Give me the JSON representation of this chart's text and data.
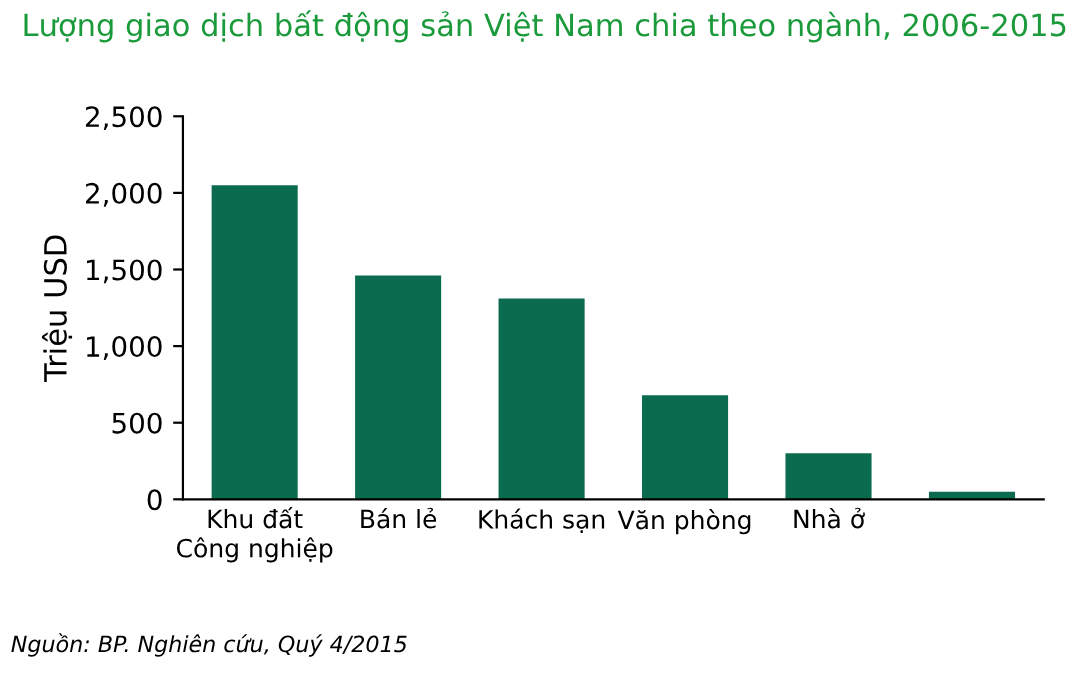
{
  "chart_data": {
    "type": "bar",
    "title": "Lượng giao dịch bất động sản Việt Nam chia theo ngành, 2006-2015",
    "ylabel": "Triệu USD",
    "categories": [
      "Khu đất\nCông nghiệp",
      "Bán lẻ",
      "Khách sạn",
      "Văn phòng",
      "Nhà ở",
      null
    ],
    "values": [
      2050,
      1460,
      1310,
      680,
      300,
      50
    ],
    "color": "#0b6b4e",
    "ylim": [
      0,
      2500
    ],
    "yticks": [
      {
        "value": 0,
        "label": "0"
      },
      {
        "value": 500,
        "label": "500"
      },
      {
        "value": 1000,
        "label": "1,000"
      },
      {
        "value": 1500,
        "label": "1,500"
      },
      {
        "value": 2000,
        "label": "2,000"
      },
      {
        "value": 2500,
        "label": "2,500"
      }
    ],
    "grid": false,
    "annotations": [
      "Nguồn: BP. Nghiên cứu, Quý 4/2015"
    ]
  }
}
